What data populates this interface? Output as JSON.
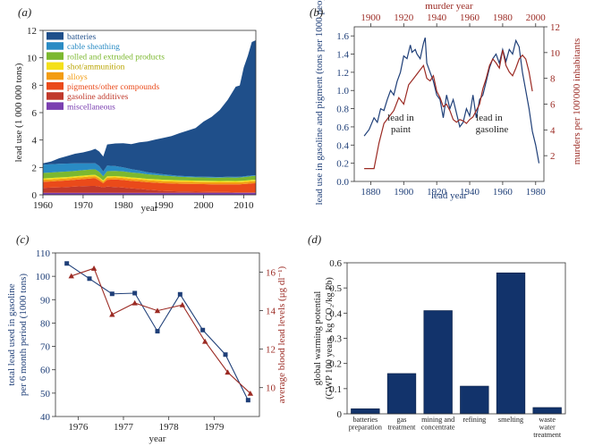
{
  "colors": {
    "navy": "#1f3f78",
    "red": "#9b2a23",
    "bar": "#12336b",
    "axis": "#333333"
  },
  "chart_data": [
    {
      "id": "a",
      "panel_label": "(a)",
      "type": "area",
      "xlabel": "year",
      "ylabel": "lead use (1 000 000 tons)",
      "xlim": [
        1960,
        2013
      ],
      "ylim": [
        0,
        12
      ],
      "x_ticks": [
        1960,
        1970,
        1980,
        1990,
        2000,
        2010
      ],
      "y_ticks": [
        0,
        2,
        4,
        6,
        8,
        10,
        12
      ],
      "x": [
        1960,
        1962,
        1964,
        1966,
        1968,
        1970,
        1972,
        1973,
        1974,
        1975,
        1976,
        1978,
        1980,
        1982,
        1984,
        1986,
        1988,
        1990,
        1992,
        1994,
        1996,
        1998,
        2000,
        2002,
        2004,
        2006,
        2008,
        2009,
        2010,
        2011,
        2012,
        2013
      ],
      "series": [
        {
          "name": "miscellaneous",
          "color": "#7b3fb0",
          "values": [
            0.15,
            0.15,
            0.15,
            0.15,
            0.15,
            0.15,
            0.15,
            0.15,
            0.15,
            0.15,
            0.15,
            0.15,
            0.15,
            0.15,
            0.15,
            0.15,
            0.15,
            0.15,
            0.15,
            0.15,
            0.15,
            0.15,
            0.15,
            0.15,
            0.15,
            0.15,
            0.15,
            0.15,
            0.15,
            0.15,
            0.15,
            0.15
          ]
        },
        {
          "name": "gasoline additives",
          "color": "#c0392b",
          "values": [
            0.35,
            0.38,
            0.4,
            0.42,
            0.45,
            0.48,
            0.5,
            0.5,
            0.45,
            0.4,
            0.45,
            0.42,
            0.38,
            0.32,
            0.28,
            0.22,
            0.18,
            0.14,
            0.12,
            0.1,
            0.09,
            0.08,
            0.07,
            0.06,
            0.05,
            0.05,
            0.04,
            0.04,
            0.04,
            0.04,
            0.04,
            0.04
          ]
        },
        {
          "name": "pigments/other compounds",
          "color": "#ea4a1a",
          "values": [
            0.45,
            0.45,
            0.47,
            0.48,
            0.5,
            0.52,
            0.55,
            0.56,
            0.45,
            0.3,
            0.5,
            0.55,
            0.55,
            0.55,
            0.55,
            0.55,
            0.56,
            0.56,
            0.56,
            0.56,
            0.56,
            0.56,
            0.56,
            0.56,
            0.56,
            0.57,
            0.57,
            0.58,
            0.6,
            0.62,
            0.65,
            0.66
          ]
        },
        {
          "name": "alloys",
          "color": "#f39c12",
          "values": [
            0.15,
            0.15,
            0.15,
            0.15,
            0.15,
            0.15,
            0.15,
            0.15,
            0.15,
            0.12,
            0.15,
            0.15,
            0.15,
            0.15,
            0.15,
            0.15,
            0.15,
            0.15,
            0.15,
            0.15,
            0.15,
            0.15,
            0.15,
            0.15,
            0.15,
            0.15,
            0.15,
            0.15,
            0.15,
            0.15,
            0.15,
            0.15
          ]
        },
        {
          "name": "shot/ammunition",
          "color": "#f4e01a",
          "values": [
            0.1,
            0.1,
            0.1,
            0.1,
            0.1,
            0.1,
            0.1,
            0.1,
            0.1,
            0.08,
            0.1,
            0.1,
            0.1,
            0.1,
            0.1,
            0.1,
            0.1,
            0.1,
            0.1,
            0.1,
            0.1,
            0.1,
            0.1,
            0.1,
            0.1,
            0.1,
            0.1,
            0.1,
            0.1,
            0.1,
            0.1,
            0.1
          ]
        },
        {
          "name": "rolled and extruded products",
          "color": "#7cb82f",
          "values": [
            0.4,
            0.4,
            0.4,
            0.4,
            0.4,
            0.4,
            0.4,
            0.4,
            0.38,
            0.3,
            0.38,
            0.38,
            0.38,
            0.36,
            0.35,
            0.33,
            0.31,
            0.3,
            0.28,
            0.26,
            0.25,
            0.24,
            0.24,
            0.24,
            0.24,
            0.25,
            0.25,
            0.25,
            0.26,
            0.27,
            0.28,
            0.28
          ]
        },
        {
          "name": "cable sheathing",
          "color": "#2a8bc4",
          "values": [
            0.6,
            0.6,
            0.6,
            0.58,
            0.55,
            0.5,
            0.45,
            0.45,
            0.43,
            0.35,
            0.4,
            0.35,
            0.3,
            0.25,
            0.2,
            0.15,
            0.12,
            0.1,
            0.08,
            0.07,
            0.06,
            0.06,
            0.05,
            0.05,
            0.05,
            0.05,
            0.05,
            0.05,
            0.05,
            0.05,
            0.05,
            0.05
          ]
        },
        {
          "name": "batteries",
          "color": "#1f4f8a",
          "values": [
            0.1,
            0.2,
            0.4,
            0.55,
            0.7,
            0.8,
            0.95,
            1.05,
            1.05,
            1.1,
            1.55,
            1.65,
            1.75,
            1.82,
            2.05,
            2.25,
            2.47,
            2.66,
            2.85,
            3.11,
            3.33,
            3.53,
            4.03,
            4.38,
            4.89,
            5.62,
            6.58,
            6.66,
            7.95,
            8.76,
            9.73,
            9.85
          ]
        }
      ]
    },
    {
      "id": "b",
      "panel_label": "(b)",
      "type": "line",
      "xlabel": "lead year",
      "x2label": "murder year",
      "ylabel": "lead use in gasoline and pigment (tons per 1000 people)",
      "y2label": "murders per 100'000 inhabitants",
      "xlim": [
        1870,
        1985
      ],
      "x2lim": [
        1890,
        2005
      ],
      "ylim": [
        0,
        1.7
      ],
      "y2lim": [
        0,
        12
      ],
      "x_ticks": [
        1880,
        1900,
        1920,
        1940,
        1960,
        1980
      ],
      "x2_ticks": [
        1900,
        1920,
        1940,
        1960,
        1980,
        2000
      ],
      "y_ticks": [
        0,
        0.2,
        0.4,
        0.6,
        0.8,
        1.0,
        1.2,
        1.4,
        1.6
      ],
      "y2_ticks": [
        2,
        4,
        6,
        8,
        10,
        12
      ],
      "annotations": [
        "lead in paint",
        "lead in gasoline"
      ],
      "series": [
        {
          "name": "lead use",
          "axis": "left",
          "color": "#1f3f78",
          "x": [
            1876,
            1879,
            1882,
            1884,
            1886,
            1888,
            1890,
            1892,
            1894,
            1896,
            1898,
            1900,
            1902,
            1904,
            1905,
            1907,
            1908,
            1910,
            1912,
            1913,
            1914,
            1916,
            1918,
            1920,
            1922,
            1924,
            1926,
            1928,
            1930,
            1932,
            1934,
            1936,
            1938,
            1940,
            1942,
            1944,
            1946,
            1948,
            1950,
            1952,
            1954,
            1956,
            1958,
            1960,
            1962,
            1964,
            1966,
            1968,
            1970,
            1972,
            1974,
            1976,
            1978,
            1980,
            1982
          ],
          "values": [
            0.5,
            0.57,
            0.7,
            0.65,
            0.8,
            0.78,
            0.9,
            1.0,
            0.95,
            1.1,
            1.2,
            1.38,
            1.35,
            1.5,
            1.42,
            1.45,
            1.4,
            1.35,
            1.52,
            1.58,
            1.3,
            1.2,
            1.1,
            0.95,
            0.9,
            0.7,
            0.95,
            0.8,
            0.9,
            0.75,
            0.6,
            0.65,
            0.8,
            0.72,
            0.95,
            0.7,
            0.9,
            0.95,
            1.1,
            1.25,
            1.35,
            1.4,
            1.3,
            1.45,
            1.32,
            1.45,
            1.4,
            1.55,
            1.48,
            1.2,
            1.0,
            0.8,
            0.55,
            0.4,
            0.2
          ]
        },
        {
          "name": "murders",
          "axis": "right",
          "color": "#9b2a23",
          "x": [
            1896,
            1899,
            1902,
            1905,
            1908,
            1911,
            1914,
            1917,
            1920,
            1923,
            1926,
            1929,
            1932,
            1934,
            1936,
            1938,
            1940,
            1942,
            1944,
            1946,
            1948,
            1950,
            1952,
            1954,
            1956,
            1958,
            1960,
            1962,
            1964,
            1966,
            1968,
            1970,
            1972,
            1974,
            1976,
            1978,
            1980,
            1982,
            1984,
            1986,
            1988,
            1990,
            1992,
            1994,
            1996,
            1998
          ],
          "values": [
            1.0,
            1.0,
            1.0,
            3.0,
            4.5,
            5.0,
            5.5,
            6.5,
            6.0,
            7.5,
            8.0,
            8.5,
            9.0,
            8.0,
            7.8,
            8.2,
            7.0,
            6.5,
            5.8,
            6.0,
            5.5,
            4.8,
            4.6,
            4.8,
            4.7,
            4.5,
            4.8,
            5.0,
            5.5,
            6.0,
            7.2,
            8.0,
            9.0,
            9.5,
            9.2,
            8.8,
            10.2,
            9.0,
            8.5,
            8.2,
            8.8,
            9.5,
            9.8,
            9.5,
            8.5,
            7.0
          ]
        }
      ]
    },
    {
      "id": "c",
      "panel_label": "(c)",
      "type": "line",
      "xlabel": "year",
      "ylabel": "total lead used in gasoline per 6 month period (1000 tons)",
      "y2label": "average blood lead levels (μg dl⁻¹)",
      "xlim": [
        1975.5,
        1980
      ],
      "ylim": [
        40,
        110
      ],
      "y2lim": [
        8.5,
        17
      ],
      "x_ticks": [
        1976,
        1977,
        1978,
        1979
      ],
      "y_ticks": [
        40,
        50,
        60,
        70,
        80,
        90,
        100,
        110
      ],
      "y2_ticks": [
        10,
        12,
        14,
        16
      ],
      "series": [
        {
          "name": "total lead used in gasoline",
          "axis": "left",
          "color": "#1f3f78",
          "marker": "square",
          "x": [
            1975.75,
            1976.25,
            1976.75,
            1977.25,
            1977.75,
            1978.25,
            1978.75,
            1979.25,
            1979.75
          ],
          "values": [
            105.5,
            99,
            92.5,
            92.8,
            76.5,
            92.3,
            77,
            66.5,
            47
          ]
        },
        {
          "name": "average blood lead levels",
          "axis": "right",
          "color": "#9b2a23",
          "marker": "triangle",
          "x": [
            1975.85,
            1976.35,
            1976.75,
            1977.25,
            1977.75,
            1978.3,
            1978.8,
            1979.3,
            1979.8
          ],
          "values": [
            15.8,
            16.2,
            13.8,
            14.4,
            14.0,
            14.3,
            12.4,
            10.8,
            9.7
          ]
        }
      ]
    },
    {
      "id": "d",
      "panel_label": "(d)",
      "type": "bar",
      "ylabel": "global warming potential (GWP 100 years, kg CO₂/kg Pb)",
      "ylim": [
        0,
        0.6
      ],
      "y_ticks": [
        0,
        0.1,
        0.2,
        0.3,
        0.4,
        0.5,
        0.6
      ],
      "categories": [
        [
          "batteries",
          "preparation"
        ],
        [
          "gas",
          "treatment"
        ],
        [
          "mining and",
          "concentrate"
        ],
        [
          "refining"
        ],
        [
          "smelting"
        ],
        [
          "waste",
          "water",
          "treatment"
        ]
      ],
      "values": [
        0.02,
        0.16,
        0.41,
        0.11,
        0.56,
        0.025
      ]
    }
  ]
}
